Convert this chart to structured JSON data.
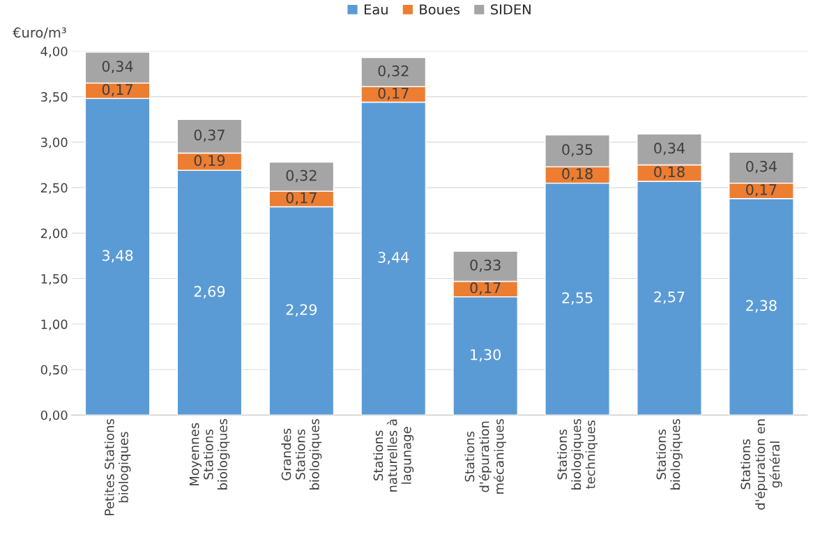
{
  "chart_data": {
    "type": "bar",
    "stacked": true,
    "ylabel": "€uro/m³",
    "categories": [
      "Petites Stations\nbiologiques",
      "Moyennes\nStations\nbiologiques",
      "Grandes\nStations\nbiologiques",
      "Stations\nnaturelles à\nlagunage",
      "Stations\nd'épuration\nmécaniques",
      "Stations\nbiologiques\ntechniques",
      "Stations\nbiologiques",
      "Stations\nd'épuration en\ngénéral"
    ],
    "series": [
      {
        "name": "Eau",
        "color": "#5b9bd5",
        "values": [
          3.48,
          2.69,
          2.29,
          3.44,
          1.3,
          2.55,
          2.57,
          2.38
        ],
        "value_labels": [
          "3,48",
          "2,69",
          "2,29",
          "3,44",
          "1,30",
          "2,55",
          "2,57",
          "2,38"
        ]
      },
      {
        "name": "Boues",
        "color": "#ed7d31",
        "values": [
          0.17,
          0.19,
          0.17,
          0.17,
          0.17,
          0.18,
          0.18,
          0.17
        ],
        "value_labels": [
          "0,17",
          "0,19",
          "0,17",
          "0,17",
          "0,17",
          "0,18",
          "0,18",
          "0,17"
        ]
      },
      {
        "name": "SIDEN",
        "color": "#a5a5a5",
        "values": [
          0.34,
          0.37,
          0.32,
          0.32,
          0.33,
          0.35,
          0.34,
          0.34
        ],
        "value_labels": [
          "0,34",
          "0,37",
          "0,32",
          "0,32",
          "0,33",
          "0,35",
          "0,34",
          "0,34"
        ]
      }
    ],
    "ylim": [
      0,
      4
    ],
    "yticks": [
      {
        "value": 0,
        "label": "0,00"
      },
      {
        "value": 0.5,
        "label": "0,50"
      },
      {
        "value": 1,
        "label": "1,00"
      },
      {
        "value": 1.5,
        "label": "1,50"
      },
      {
        "value": 2,
        "label": "2,00"
      },
      {
        "value": 2.5,
        "label": "2,50"
      },
      {
        "value": 3,
        "label": "3,00"
      },
      {
        "value": 3.5,
        "label": "3,50"
      },
      {
        "value": 4,
        "label": "4,00"
      }
    ],
    "grid": "y",
    "legend": "top"
  }
}
